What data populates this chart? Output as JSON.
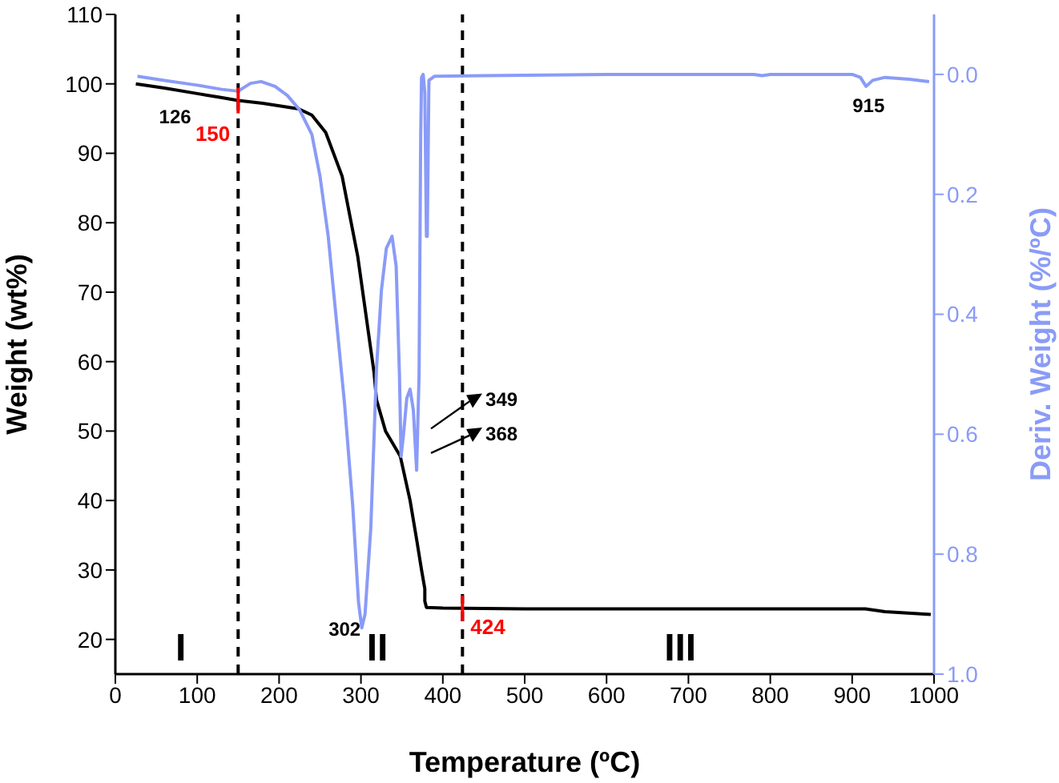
{
  "chart_data": {
    "type": "line",
    "xlabel": "Temperature (ºC)",
    "ylabel": "Weight (wt%)",
    "y2label": "Deriv. Weight (%/ºC)",
    "xlim": [
      0,
      1000
    ],
    "xticks": [
      0,
      100,
      200,
      300,
      400,
      500,
      600,
      700,
      800,
      900,
      1000
    ],
    "ylim": [
      15,
      110
    ],
    "yticks": [
      20,
      30,
      40,
      50,
      60,
      70,
      80,
      90,
      100,
      110
    ],
    "y2lim": [
      1.0,
      -0.1
    ],
    "y2ticks": [
      {
        "value": 0,
        "label": "0.0"
      },
      {
        "value": 0.2,
        "label": "0.2"
      },
      {
        "value": 0.4,
        "label": "0.4"
      },
      {
        "value": 0.6,
        "label": "0.6"
      },
      {
        "value": 0.8,
        "label": "0.8"
      },
      {
        "value": 1.0,
        "label": "1.0"
      }
    ],
    "grid": false,
    "legend": false,
    "marker": "none",
    "line_style": "solid",
    "series": [
      {
        "color": "#000000",
        "x": [
          25,
          60,
          100,
          126,
          150,
          180,
          224,
          240,
          257,
          277,
          296,
          316,
          319,
          330,
          348,
          360,
          368,
          374,
          378,
          378,
          380,
          400,
          500,
          700,
          916,
          940,
          996
        ],
        "values": [
          100,
          99.4,
          98.6,
          98.1,
          97.6,
          97.2,
          96.4,
          95.5,
          93,
          86.7,
          75.2,
          58.4,
          54.5,
          50,
          46.4,
          40,
          34.4,
          30,
          27.3,
          25.5,
          24.6,
          24.5,
          24.4,
          24.4,
          24.4,
          24,
          23.6
        ]
      },
      {
        "color": "#8a9bf7",
        "axis": "y2",
        "x": [
          27,
          60,
          100,
          130,
          150,
          165,
          178,
          195,
          210,
          225,
          240,
          250,
          260,
          270,
          280,
          290,
          297,
          301,
          305,
          312,
          319,
          325,
          331,
          338,
          343,
          347,
          349,
          352,
          356,
          360,
          364,
          368,
          371,
          373,
          374,
          376,
          378,
          380,
          381,
          383,
          390,
          450,
          600,
          780,
          790,
          800,
          900,
          910,
          917,
          925,
          940,
          970,
          994
        ],
        "values": [
          0.003,
          0.01,
          0.018,
          0.025,
          0.028,
          0.015,
          0.012,
          0.02,
          0.035,
          0.059,
          0.1,
          0.17,
          0.27,
          0.41,
          0.55,
          0.72,
          0.88,
          0.923,
          0.9,
          0.757,
          0.49,
          0.36,
          0.29,
          0.27,
          0.32,
          0.5,
          0.637,
          0.6,
          0.54,
          0.525,
          0.56,
          0.66,
          0.5,
          0.1,
          0.005,
          0.0,
          0.03,
          0.27,
          0.27,
          0.01,
          0.003,
          0.002,
          0.0,
          0.0,
          0.002,
          0.0,
          0.0,
          0.005,
          0.02,
          0.01,
          0.005,
          0.008,
          0.012
        ]
      }
    ],
    "ref_lines": [
      {
        "axis": "x",
        "value": 150,
        "label": "150",
        "color": "#000000",
        "line_style": "dashed"
      },
      {
        "axis": "x",
        "value": 424,
        "label": "424",
        "color": "#000000",
        "line_style": "dashed"
      }
    ],
    "annotations": [
      "I",
      "II",
      "III",
      "126",
      "302",
      "915",
      "349",
      "368"
    ]
  }
}
